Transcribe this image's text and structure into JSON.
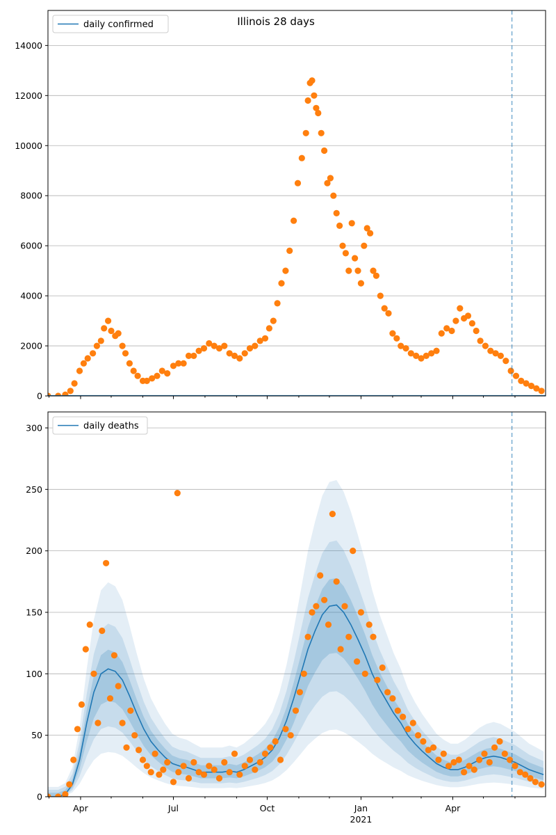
{
  "figure": {
    "title": "Illinois 28 days",
    "colors": {
      "line": "#1f77b4",
      "points": "#ff7f0e",
      "band": "#1f77b4",
      "grid": "#b0b0b0",
      "vline": "#1f77b4"
    }
  },
  "chart_data": [
    {
      "type": "scatter",
      "title": "Illinois 28 days",
      "legend": [
        "daily confirmed"
      ],
      "legend_position": "top-left",
      "xlabel": "",
      "ylabel": "",
      "x_tick_labels": [
        "Apr",
        "Jul",
        "Oct",
        "Jan",
        "Apr"
      ],
      "x_tick_sublabel": "2021",
      "y_ticks": [
        0,
        2000,
        4000,
        6000,
        8000,
        10000,
        12000,
        14000
      ],
      "ylim": [
        0,
        15400
      ],
      "grid": "horizontal",
      "forecast_line": "2021-05-29",
      "series": [
        {
          "name": "daily confirmed",
          "kind": "scatter",
          "x": [
            "2020-02-29",
            "2020-03-10",
            "2020-03-17",
            "2020-03-22",
            "2020-03-26",
            "2020-03-31",
            "2020-04-04",
            "2020-04-08",
            "2020-04-13",
            "2020-04-17",
            "2020-04-21",
            "2020-04-24",
            "2020-04-28",
            "2020-05-01",
            "2020-05-05",
            "2020-05-08",
            "2020-05-12",
            "2020-05-15",
            "2020-05-19",
            "2020-05-23",
            "2020-05-27",
            "2020-06-01",
            "2020-06-05",
            "2020-06-10",
            "2020-06-15",
            "2020-06-20",
            "2020-06-25",
            "2020-07-01",
            "2020-07-06",
            "2020-07-11",
            "2020-07-16",
            "2020-07-21",
            "2020-07-26",
            "2020-07-31",
            "2020-08-05",
            "2020-08-10",
            "2020-08-15",
            "2020-08-20",
            "2020-08-25",
            "2020-08-30",
            "2020-09-04",
            "2020-09-09",
            "2020-09-14",
            "2020-09-19",
            "2020-09-24",
            "2020-09-29",
            "2020-10-03",
            "2020-10-07",
            "2020-10-11",
            "2020-10-15",
            "2020-10-19",
            "2020-10-23",
            "2020-10-27",
            "2020-10-31",
            "2020-11-04",
            "2020-11-08",
            "2020-11-10",
            "2020-11-12",
            "2020-11-14",
            "2020-11-16",
            "2020-11-18",
            "2020-11-20",
            "2020-11-23",
            "2020-11-26",
            "2020-11-29",
            "2020-12-02",
            "2020-12-05",
            "2020-12-08",
            "2020-12-11",
            "2020-12-14",
            "2020-12-17",
            "2020-12-20",
            "2020-12-23",
            "2020-12-26",
            "2020-12-29",
            "2021-01-01",
            "2021-01-04",
            "2021-01-07",
            "2021-01-10",
            "2021-01-13",
            "2021-01-16",
            "2021-01-20",
            "2021-01-24",
            "2021-01-28",
            "2021-02-01",
            "2021-02-05",
            "2021-02-09",
            "2021-02-14",
            "2021-02-19",
            "2021-02-24",
            "2021-03-01",
            "2021-03-06",
            "2021-03-11",
            "2021-03-16",
            "2021-03-21",
            "2021-03-26",
            "2021-03-31",
            "2021-04-04",
            "2021-04-08",
            "2021-04-12",
            "2021-04-16",
            "2021-04-20",
            "2021-04-24",
            "2021-04-28",
            "2021-05-03",
            "2021-05-08",
            "2021-05-13",
            "2021-05-18",
            "2021-05-23",
            "2021-05-28",
            "2021-06-02",
            "2021-06-07",
            "2021-06-12",
            "2021-06-17",
            "2021-06-22",
            "2021-06-27"
          ],
          "y": [
            0,
            0,
            50,
            200,
            500,
            1000,
            1300,
            1500,
            1700,
            2000,
            2200,
            2700,
            3000,
            2600,
            2400,
            2500,
            2000,
            1700,
            1300,
            1000,
            800,
            600,
            600,
            700,
            800,
            1000,
            900,
            1200,
            1300,
            1300,
            1600,
            1600,
            1800,
            1900,
            2100,
            2000,
            1900,
            2000,
            1700,
            1600,
            1500,
            1700,
            1900,
            2000,
            2200,
            2300,
            2700,
            3000,
            3700,
            4500,
            5000,
            5800,
            7000,
            8500,
            9500,
            10500,
            11800,
            12500,
            12600,
            12000,
            11500,
            11300,
            10500,
            9800,
            8500,
            8700,
            8000,
            7300,
            6800,
            6000,
            5700,
            5000,
            6900,
            5500,
            5000,
            4500,
            6000,
            6700,
            6500,
            5000,
            4800,
            4000,
            3500,
            3300,
            2500,
            2300,
            2000,
            1900,
            1700,
            1600,
            1500,
            1600,
            1700,
            1800,
            2500,
            2700,
            2600,
            3000,
            3500,
            3100,
            3200,
            2900,
            2600,
            2200,
            2000,
            1800,
            1700,
            1600,
            1400,
            1000,
            800,
            600,
            500,
            400,
            300,
            200
          ]
        }
      ]
    },
    {
      "type": "line",
      "title": "",
      "legend": [
        "daily deaths"
      ],
      "legend_position": "top-left",
      "xlabel": "",
      "ylabel": "",
      "x_tick_labels": [
        "Apr",
        "Jul",
        "Oct",
        "Jan",
        "Apr"
      ],
      "x_tick_sublabel": "2021",
      "y_ticks": [
        0,
        50,
        100,
        150,
        200,
        250,
        300
      ],
      "ylim": [
        0,
        313
      ],
      "grid": "horizontal",
      "forecast_line": "2021-05-29",
      "series": [
        {
          "name": "daily deaths",
          "kind": "line",
          "x": [
            "2020-02-29",
            "2020-03-10",
            "2020-03-17",
            "2020-03-24",
            "2020-03-31",
            "2020-04-07",
            "2020-04-14",
            "2020-04-21",
            "2020-04-28",
            "2020-05-05",
            "2020-05-12",
            "2020-05-19",
            "2020-05-26",
            "2020-06-02",
            "2020-06-09",
            "2020-06-16",
            "2020-06-23",
            "2020-06-30",
            "2020-07-07",
            "2020-07-14",
            "2020-07-21",
            "2020-07-28",
            "2020-08-04",
            "2020-08-11",
            "2020-08-18",
            "2020-08-25",
            "2020-09-01",
            "2020-09-08",
            "2020-09-15",
            "2020-09-22",
            "2020-09-29",
            "2020-10-06",
            "2020-10-13",
            "2020-10-20",
            "2020-10-27",
            "2020-11-03",
            "2020-11-10",
            "2020-11-17",
            "2020-11-24",
            "2020-12-01",
            "2020-12-08",
            "2020-12-15",
            "2020-12-22",
            "2020-12-29",
            "2021-01-05",
            "2021-01-12",
            "2021-01-19",
            "2021-01-26",
            "2021-02-02",
            "2021-02-09",
            "2021-02-16",
            "2021-02-23",
            "2021-03-02",
            "2021-03-09",
            "2021-03-16",
            "2021-03-23",
            "2021-03-30",
            "2021-04-06",
            "2021-04-13",
            "2021-04-20",
            "2021-04-27",
            "2021-05-04",
            "2021-05-11",
            "2021-05-18",
            "2021-05-25",
            "2021-06-01",
            "2021-06-08",
            "2021-06-15",
            "2021-06-22",
            "2021-06-29"
          ],
          "y": [
            0,
            0,
            2,
            10,
            30,
            60,
            85,
            100,
            104,
            102,
            95,
            82,
            68,
            55,
            45,
            38,
            32,
            27,
            25,
            24,
            22,
            20,
            20,
            20,
            20,
            21,
            20,
            22,
            25,
            28,
            32,
            38,
            48,
            62,
            80,
            100,
            120,
            135,
            148,
            155,
            156,
            150,
            140,
            128,
            115,
            100,
            88,
            78,
            68,
            60,
            50,
            43,
            37,
            32,
            27,
            24,
            22,
            22,
            24,
            27,
            30,
            32,
            33,
            32,
            30,
            28,
            25,
            22,
            20,
            18
          ]
        },
        {
          "name": "",
          "kind": "scatter",
          "x": [
            "2020-02-29",
            "2020-03-10",
            "2020-03-17",
            "2020-03-21",
            "2020-03-25",
            "2020-03-29",
            "2020-04-02",
            "2020-04-06",
            "2020-04-10",
            "2020-04-14",
            "2020-04-18",
            "2020-04-22",
            "2020-04-26",
            "2020-04-30",
            "2020-05-04",
            "2020-05-08",
            "2020-05-12",
            "2020-05-16",
            "2020-05-20",
            "2020-05-24",
            "2020-05-28",
            "2020-06-01",
            "2020-06-05",
            "2020-06-09",
            "2020-06-13",
            "2020-06-17",
            "2020-06-21",
            "2020-06-25",
            "2020-07-01",
            "2020-07-06",
            "2020-07-11",
            "2020-07-16",
            "2020-07-21",
            "2020-07-26",
            "2020-07-31",
            "2020-08-05",
            "2020-08-10",
            "2020-08-15",
            "2020-08-20",
            "2020-08-25",
            "2020-08-30",
            "2020-09-04",
            "2020-09-09",
            "2020-09-14",
            "2020-09-19",
            "2020-09-24",
            "2020-09-29",
            "2020-10-04",
            "2020-10-09",
            "2020-10-14",
            "2020-10-19",
            "2020-10-24",
            "2020-10-29",
            "2020-11-02",
            "2020-11-06",
            "2020-11-10",
            "2020-11-14",
            "2020-11-18",
            "2020-11-22",
            "2020-11-26",
            "2020-11-30",
            "2020-12-04",
            "2020-12-08",
            "2020-12-12",
            "2020-12-16",
            "2020-12-20",
            "2020-12-24",
            "2020-12-28",
            "2021-01-01",
            "2021-01-05",
            "2021-01-09",
            "2021-01-13",
            "2021-01-17",
            "2021-01-22",
            "2021-01-27",
            "2021-02-01",
            "2021-02-06",
            "2021-02-11",
            "2021-02-16",
            "2021-02-21",
            "2021-02-26",
            "2021-03-03",
            "2021-03-08",
            "2021-03-13",
            "2021-03-18",
            "2021-03-23",
            "2021-03-28",
            "2021-04-02",
            "2021-04-07",
            "2021-04-12",
            "2021-04-17",
            "2021-04-22",
            "2021-04-27",
            "2021-05-02",
            "2021-05-07",
            "2021-05-12",
            "2021-05-17",
            "2021-05-22",
            "2021-05-27",
            "2021-06-01",
            "2021-06-06",
            "2021-06-11",
            "2021-06-16",
            "2021-06-21",
            "2021-06-27",
            "2020-07-05"
          ],
          "y": [
            0,
            0,
            2,
            10,
            30,
            55,
            75,
            120,
            140,
            100,
            60,
            135,
            190,
            80,
            115,
            90,
            60,
            40,
            70,
            50,
            38,
            30,
            25,
            20,
            35,
            18,
            22,
            28,
            12,
            20,
            25,
            15,
            28,
            20,
            18,
            25,
            22,
            15,
            28,
            20,
            35,
            18,
            25,
            30,
            22,
            28,
            35,
            40,
            45,
            30,
            55,
            50,
            70,
            85,
            100,
            130,
            150,
            155,
            180,
            160,
            140,
            230,
            175,
            120,
            155,
            130,
            200,
            110,
            150,
            100,
            140,
            130,
            95,
            105,
            85,
            80,
            70,
            65,
            55,
            60,
            50,
            45,
            38,
            40,
            30,
            35,
            25,
            28,
            30,
            20,
            25,
            22,
            30,
            35,
            28,
            40,
            45,
            35,
            30,
            25,
            20,
            18,
            15,
            12,
            10,
            247
          ]
        }
      ],
      "bands": [
        {
          "name": "",
          "level": "outer"
        },
        {
          "name": "",
          "level": "middle"
        },
        {
          "name": "",
          "level": "inner"
        }
      ]
    }
  ]
}
